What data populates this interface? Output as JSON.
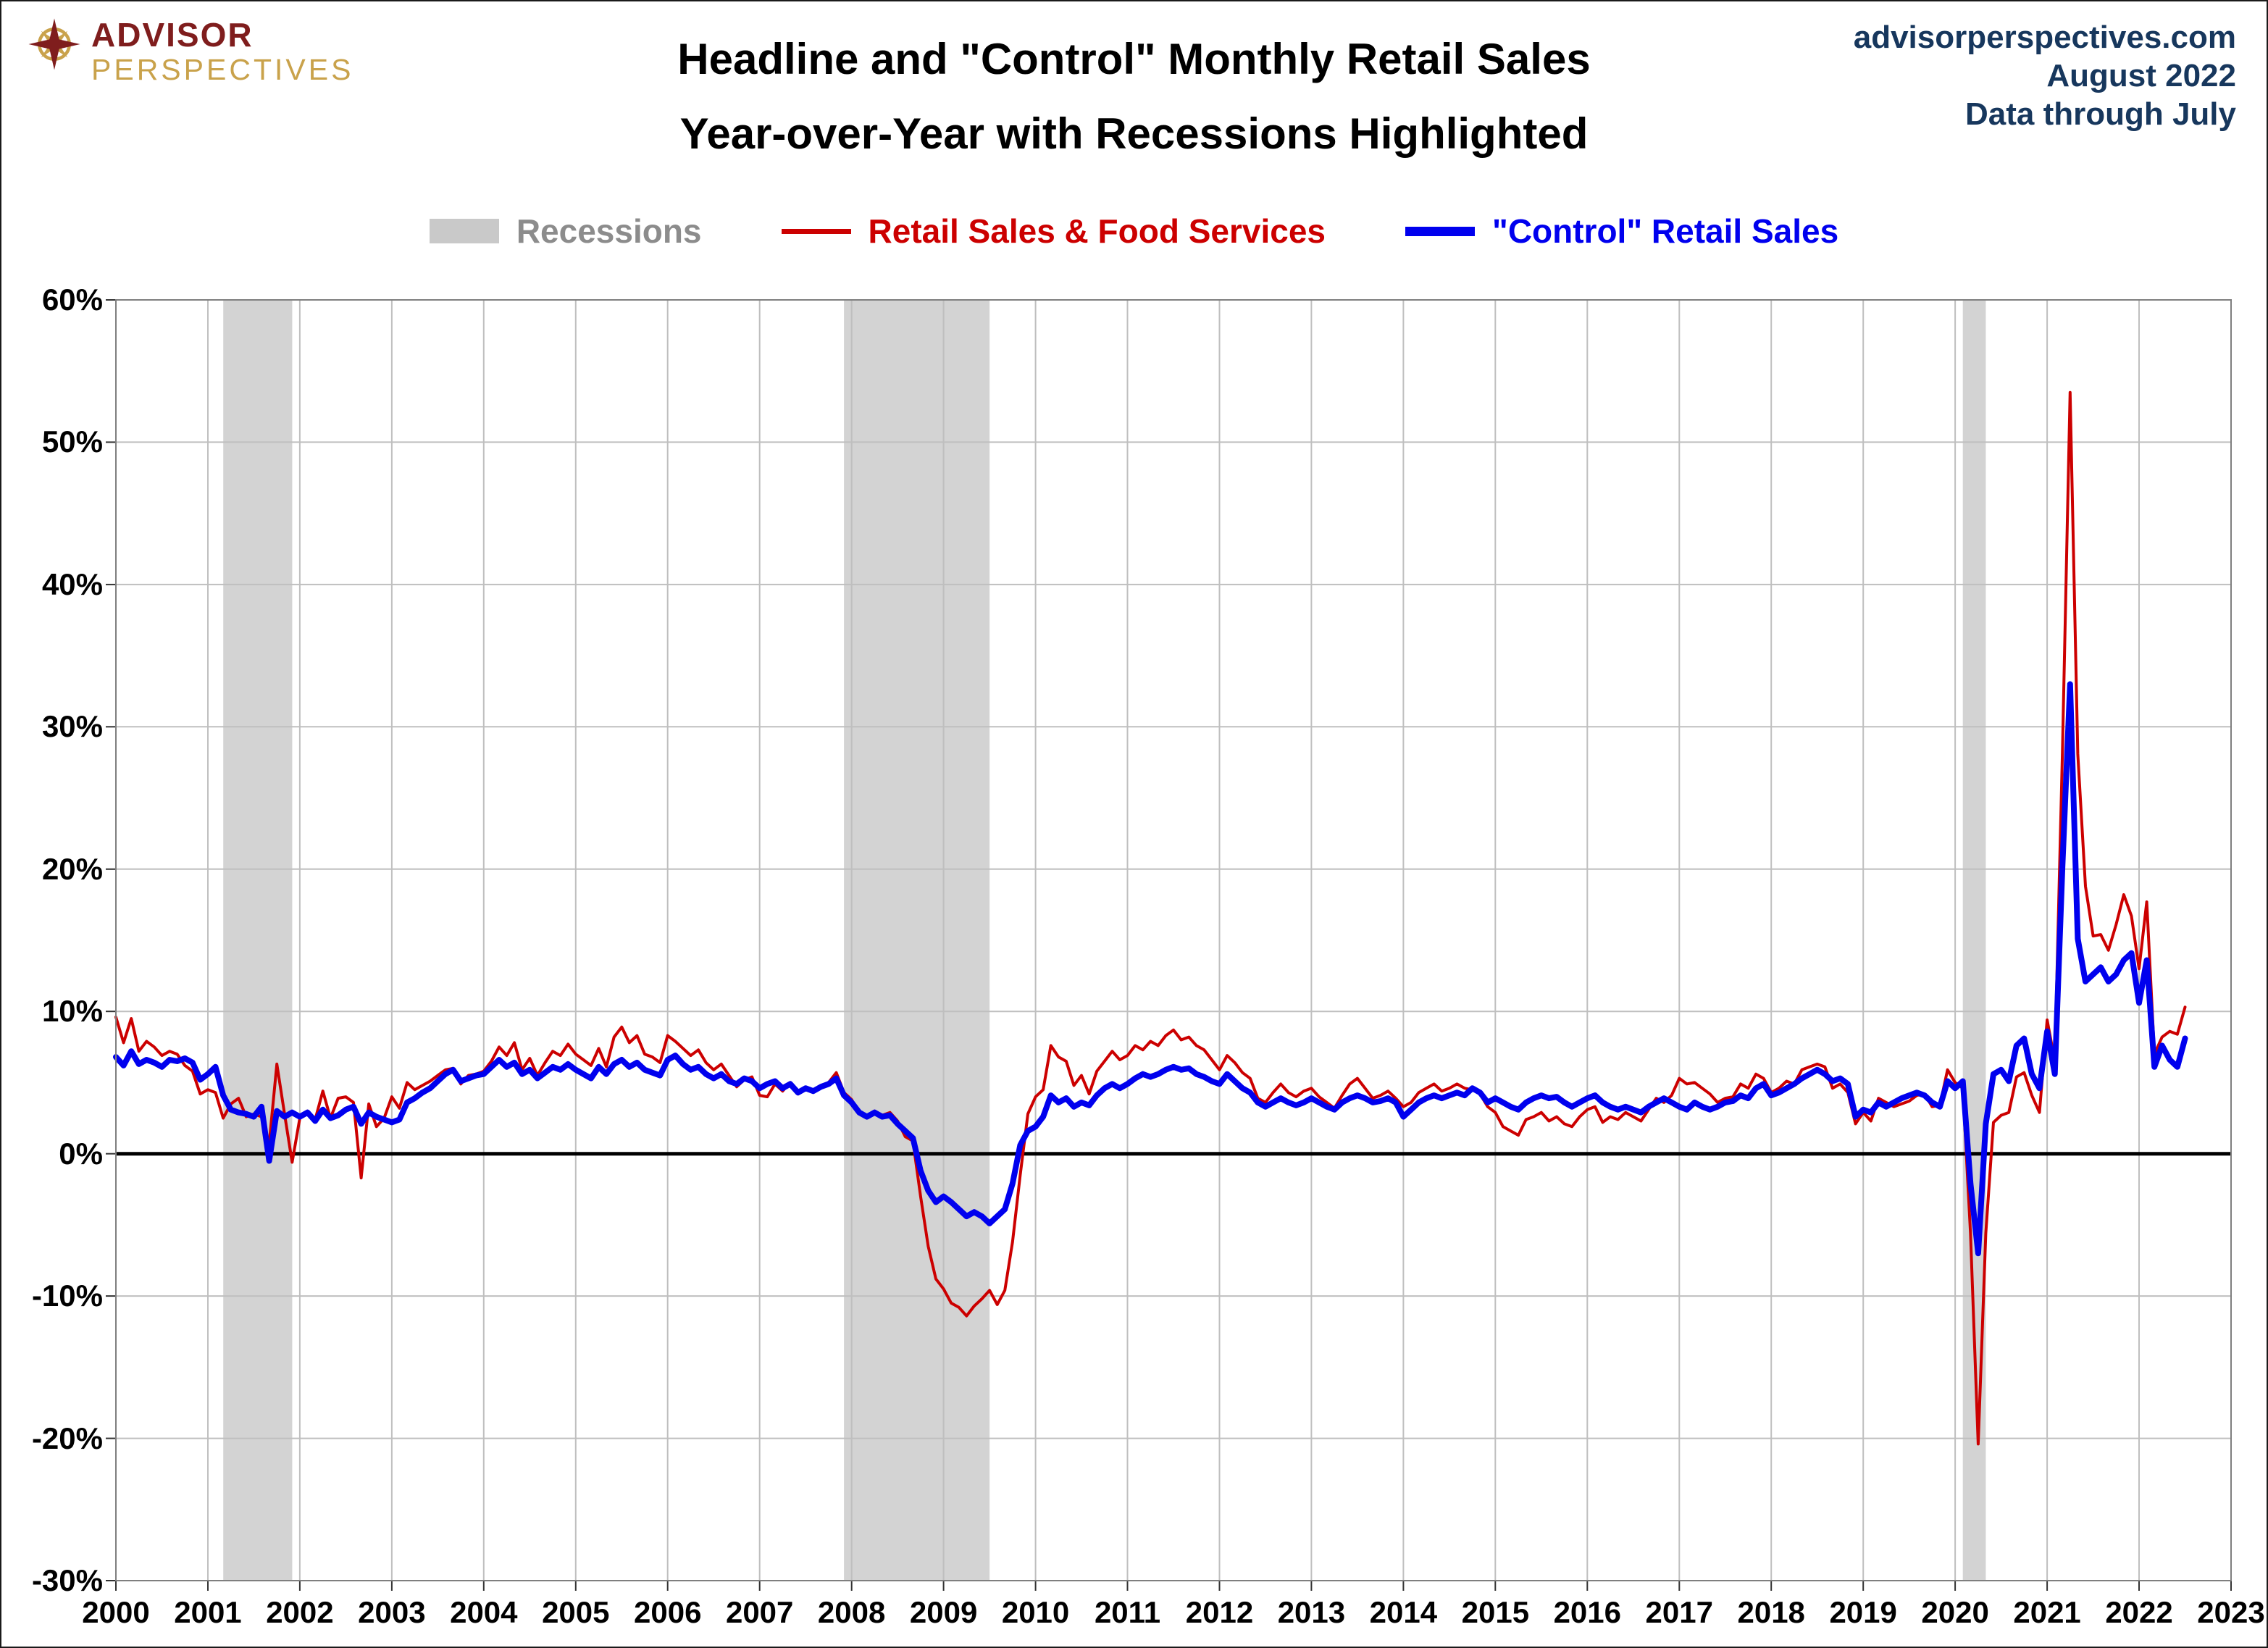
{
  "header": {
    "logo_line1": "ADVISOR",
    "logo_line2": "PERSPECTIVES",
    "title_line1": "Headline and \"Control\" Monthly Retail Sales",
    "title_line2": "Year-over-Year with Recessions Highlighted",
    "source_site": "advisorperspectives.com",
    "source_date": "August 2022",
    "source_note": "Data through July"
  },
  "legend": {
    "recessions_label": "Recessions",
    "headline_label": "Retail Sales & Food Services",
    "control_label": "\"Control\" Retail Sales"
  },
  "colors": {
    "headline_line": "#CC0000",
    "control_line": "#0000EE",
    "recession_band": "#D3D3D3",
    "recessions_label_text": "#8C8C8C",
    "source_text": "#17375D",
    "grid": "#BFBFBF",
    "zero_line": "#000000",
    "logo_maroon": "#7F1D1D",
    "logo_gold": "#C9A24B"
  },
  "chart_data": {
    "type": "line",
    "title": "Headline and \"Control\" Monthly Retail Sales — Year-over-Year with Recessions Highlighted",
    "xlabel": "",
    "ylabel": "",
    "xlim": [
      2000,
      2023
    ],
    "ylim": [
      -30,
      60
    ],
    "grid": true,
    "legend_position": "top",
    "x_start": 2000,
    "points_per_year": 12,
    "x_ticks": [
      2000,
      2001,
      2002,
      2003,
      2004,
      2005,
      2006,
      2007,
      2008,
      2009,
      2010,
      2011,
      2012,
      2013,
      2014,
      2015,
      2016,
      2017,
      2018,
      2019,
      2020,
      2021,
      2022,
      2023
    ],
    "x_tick_labels": [
      "2000",
      "2001",
      "2002",
      "2003",
      "2004",
      "2005",
      "2006",
      "2007",
      "2008",
      "2009",
      "2010",
      "2011",
      "2012",
      "2013",
      "2014",
      "2015",
      "2016",
      "2017",
      "2018",
      "2019",
      "2020",
      "2021",
      "2022",
      "2023"
    ],
    "y_ticks": [
      60,
      50,
      40,
      30,
      20,
      10,
      0,
      -10,
      -20,
      -30
    ],
    "y_tick_labels": [
      "60%",
      "50%",
      "40%",
      "30%",
      "20%",
      "10%",
      "0%",
      "-10%",
      "-20%",
      "-30%"
    ],
    "recessions": [
      [
        2001.167,
        2001.917
      ],
      [
        2007.917,
        2009.5
      ],
      [
        2020.083,
        2020.333
      ]
    ],
    "style": {
      "recession_band": "#D3D3D3",
      "grid": "#BFBFBF"
    },
    "series": [
      {
        "id": "headline",
        "name": "Retail Sales & Food Services",
        "color": "#CC0000",
        "stroke_width": 4,
        "values": [
          9.6,
          7.8,
          9.5,
          7.2,
          7.9,
          7.5,
          6.9,
          7.2,
          7.0,
          6.2,
          5.8,
          4.2,
          4.5,
          4.3,
          2.5,
          3.5,
          3.9,
          2.6,
          2.8,
          2.6,
          0.7,
          6.3,
          2.8,
          -0.6,
          2.5,
          3.0,
          2.4,
          4.4,
          2.5,
          3.9,
          4.0,
          3.6,
          -1.7,
          3.5,
          1.9,
          2.5,
          4.0,
          3.2,
          5.0,
          4.5,
          4.8,
          5.1,
          5.5,
          5.9,
          6.0,
          4.9,
          5.5,
          5.6,
          5.8,
          6.5,
          7.5,
          6.9,
          7.8,
          5.9,
          6.7,
          5.5,
          6.4,
          7.2,
          6.9,
          7.7,
          7.0,
          6.6,
          6.2,
          7.4,
          6.1,
          8.2,
          8.9,
          7.8,
          8.3,
          7.0,
          6.8,
          6.4,
          8.3,
          7.9,
          7.4,
          6.9,
          7.3,
          6.4,
          5.9,
          6.3,
          5.5,
          4.7,
          5.2,
          5.4,
          4.1,
          4.0,
          4.9,
          4.4,
          5.0,
          4.2,
          4.5,
          4.3,
          4.7,
          5.0,
          5.7,
          4.3,
          3.8,
          2.8,
          2.5,
          3.0,
          2.7,
          2.9,
          2.3,
          1.2,
          0.9,
          -3.0,
          -6.5,
          -8.8,
          -9.5,
          -10.5,
          -10.8,
          -11.4,
          -10.7,
          -10.2,
          -9.6,
          -10.6,
          -9.6,
          -6.2,
          -1.5,
          2.8,
          4.0,
          4.5,
          7.6,
          6.8,
          6.5,
          4.8,
          5.5,
          4.2,
          5.8,
          6.5,
          7.2,
          6.6,
          6.9,
          7.6,
          7.3,
          7.9,
          7.6,
          8.3,
          8.7,
          8.0,
          8.2,
          7.6,
          7.3,
          6.6,
          5.9,
          6.9,
          6.4,
          5.7,
          5.3,
          3.9,
          3.6,
          4.3,
          4.9,
          4.3,
          4.0,
          4.4,
          4.6,
          4.0,
          3.6,
          3.2,
          4.1,
          4.9,
          5.3,
          4.6,
          3.9,
          4.1,
          4.4,
          3.9,
          3.3,
          3.6,
          4.3,
          4.6,
          4.9,
          4.4,
          4.6,
          4.9,
          4.6,
          4.5,
          4.2,
          3.3,
          2.9,
          1.9,
          1.6,
          1.3,
          2.4,
          2.6,
          2.9,
          2.3,
          2.6,
          2.1,
          1.9,
          2.6,
          3.1,
          3.3,
          2.2,
          2.6,
          2.4,
          2.9,
          2.6,
          2.3,
          3.1,
          3.9,
          3.6,
          4.1,
          5.3,
          4.9,
          5.0,
          4.6,
          4.2,
          3.6,
          3.9,
          4.0,
          4.9,
          4.6,
          5.6,
          5.3,
          4.3,
          4.6,
          5.1,
          4.9,
          5.9,
          6.1,
          6.3,
          6.1,
          4.6,
          4.9,
          4.3,
          2.1,
          2.9,
          2.3,
          3.9,
          3.6,
          3.3,
          3.5,
          3.7,
          4.1,
          4.2,
          3.3,
          3.4,
          5.9,
          5.0,
          4.6,
          -5.6,
          -20.4,
          -5.6,
          2.2,
          2.7,
          2.9,
          5.4,
          5.7,
          4.1,
          2.9,
          9.4,
          6.5,
          28.2,
          53.5,
          28.1,
          18.8,
          15.3,
          15.4,
          14.3,
          16.1,
          18.2,
          16.7,
          13.0,
          17.7,
          7.0,
          8.2,
          8.6,
          8.4,
          10.3
        ]
      },
      {
        "id": "control",
        "name": "\"Control\" Retail Sales",
        "color": "#0000EE",
        "stroke_width": 8,
        "values": [
          6.8,
          6.2,
          7.2,
          6.3,
          6.6,
          6.4,
          6.1,
          6.6,
          6.5,
          6.7,
          6.4,
          5.2,
          5.6,
          6.1,
          4.1,
          3.1,
          2.9,
          2.8,
          2.6,
          3.3,
          -0.5,
          3.0,
          2.6,
          2.9,
          2.6,
          2.9,
          2.3,
          3.1,
          2.5,
          2.7,
          3.1,
          3.3,
          2.1,
          2.9,
          2.6,
          2.4,
          2.2,
          2.4,
          3.6,
          3.9,
          4.3,
          4.6,
          5.1,
          5.6,
          5.9,
          5.1,
          5.3,
          5.5,
          5.6,
          6.1,
          6.6,
          6.1,
          6.4,
          5.6,
          5.9,
          5.3,
          5.7,
          6.1,
          5.9,
          6.3,
          5.9,
          5.6,
          5.3,
          6.1,
          5.6,
          6.3,
          6.6,
          6.1,
          6.4,
          5.9,
          5.7,
          5.5,
          6.6,
          6.9,
          6.3,
          5.9,
          6.1,
          5.6,
          5.3,
          5.6,
          5.1,
          4.9,
          5.3,
          5.1,
          4.6,
          4.9,
          5.1,
          4.6,
          4.9,
          4.3,
          4.6,
          4.4,
          4.7,
          4.9,
          5.3,
          4.1,
          3.6,
          2.9,
          2.6,
          2.9,
          2.6,
          2.7,
          2.1,
          1.6,
          1.1,
          -1.2,
          -2.6,
          -3.4,
          -3.0,
          -3.4,
          -3.9,
          -4.4,
          -4.1,
          -4.4,
          -4.9,
          -4.4,
          -3.9,
          -2.1,
          0.6,
          1.6,
          1.9,
          2.6,
          4.1,
          3.6,
          3.9,
          3.3,
          3.6,
          3.4,
          4.1,
          4.6,
          4.9,
          4.6,
          4.9,
          5.3,
          5.6,
          5.4,
          5.6,
          5.9,
          6.1,
          5.9,
          6.0,
          5.6,
          5.4,
          5.1,
          4.9,
          5.6,
          5.1,
          4.6,
          4.3,
          3.6,
          3.3,
          3.6,
          3.9,
          3.6,
          3.4,
          3.6,
          3.9,
          3.6,
          3.3,
          3.1,
          3.6,
          3.9,
          4.1,
          3.9,
          3.6,
          3.7,
          3.9,
          3.6,
          2.6,
          3.1,
          3.6,
          3.9,
          4.1,
          3.9,
          4.1,
          4.3,
          4.1,
          4.6,
          4.3,
          3.6,
          3.9,
          3.6,
          3.3,
          3.1,
          3.6,
          3.9,
          4.1,
          3.9,
          4.0,
          3.6,
          3.3,
          3.6,
          3.9,
          4.1,
          3.6,
          3.3,
          3.1,
          3.3,
          3.1,
          2.9,
          3.3,
          3.6,
          3.9,
          3.6,
          3.3,
          3.1,
          3.6,
          3.3,
          3.1,
          3.3,
          3.6,
          3.7,
          4.1,
          3.9,
          4.6,
          4.9,
          4.1,
          4.3,
          4.6,
          4.9,
          5.3,
          5.6,
          5.9,
          5.6,
          5.1,
          5.3,
          4.9,
          2.6,
          3.1,
          2.9,
          3.6,
          3.3,
          3.6,
          3.9,
          4.1,
          4.3,
          4.1,
          3.6,
          3.3,
          5.1,
          4.6,
          5.1,
          -2.1,
          -7.0,
          2.1,
          5.6,
          5.9,
          5.1,
          7.6,
          8.1,
          5.6,
          4.6,
          8.6,
          5.6,
          20.2,
          33.0,
          15.1,
          12.1,
          12.6,
          13.1,
          12.1,
          12.6,
          13.6,
          14.1,
          10.6,
          13.6,
          6.1,
          7.6,
          6.6,
          6.1,
          8.1
        ]
      }
    ]
  }
}
